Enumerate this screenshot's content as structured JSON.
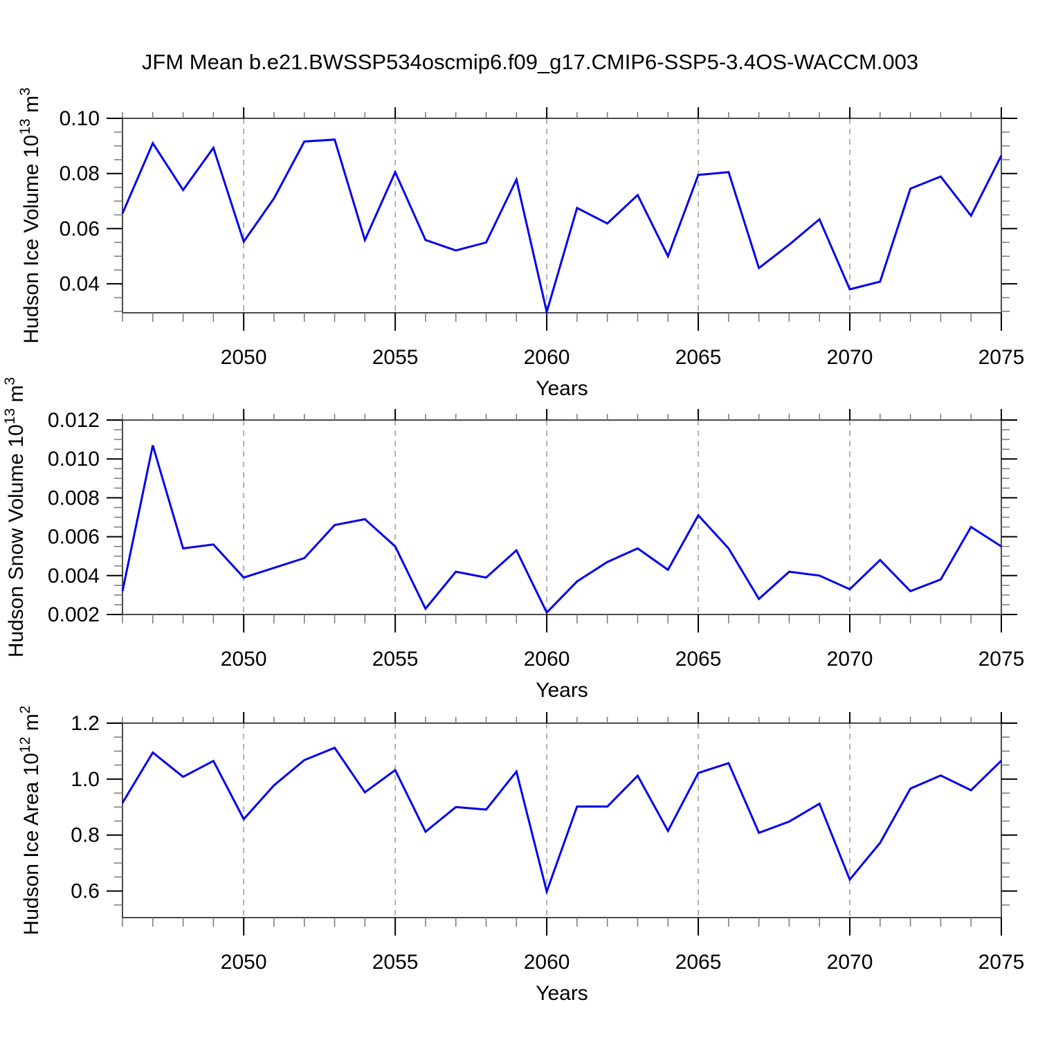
{
  "colors": {
    "line": "#0000ee",
    "frame": "#4a4a4a",
    "major_tick": "#000000",
    "minor_tick": "#777777",
    "grid": "#999999",
    "text": "#000000",
    "background": "#ffffff"
  },
  "chart_data": {
    "type": "line",
    "title": "JFM Mean b.e21.BWSSP534oscmip6.f09_g17.CMIP6-SSP5-3.4OS-WACCM.003",
    "legend": "none",
    "grid": "vertical dashed gridlines at labeled x ticks (2050-2070)",
    "x_axis": {
      "label": "Years",
      "range": [
        2046,
        2075
      ],
      "major_ticks": [
        2050,
        2055,
        2060,
        2065,
        2070,
        2075
      ],
      "minor_tick_step_years": 1,
      "gridlines_at": [
        2050,
        2055,
        2060,
        2065,
        2070
      ],
      "gridline_style": "dashed"
    },
    "x_years": [
      2046,
      2047,
      2048,
      2049,
      2050,
      2051,
      2052,
      2053,
      2054,
      2055,
      2056,
      2057,
      2058,
      2059,
      2060,
      2061,
      2062,
      2063,
      2064,
      2065,
      2066,
      2067,
      2068,
      2069,
      2070,
      2071,
      2072,
      2073,
      2074,
      2075
    ],
    "panels": [
      {
        "id": "hudson-ice-volume",
        "ylabel": "Hudson Ice Volume 10¹³ m³",
        "ylabel_parts": [
          {
            "t": "Hudson Ice Volume 10"
          },
          {
            "t": "13",
            "sup": true
          },
          {
            "t": " m"
          },
          {
            "t": "3",
            "sup": true
          }
        ],
        "ylim": [
          0.0295,
          0.1
        ],
        "y_major_ticks": [
          0.04,
          0.06,
          0.08,
          0.1
        ],
        "y_tick_labels": [
          "0.04",
          "0.06",
          "0.08",
          "0.10"
        ],
        "y_minor_tick_step": 0.005,
        "values": [
          0.0655,
          0.091,
          0.074,
          0.0893,
          0.0553,
          0.071,
          0.0916,
          0.0923,
          0.0559,
          0.0805,
          0.0559,
          0.0521,
          0.055,
          0.0778,
          0.0298,
          0.0675,
          0.0619,
          0.0722,
          0.05,
          0.0795,
          0.0805,
          0.0457,
          0.0542,
          0.0634,
          0.038,
          0.0408,
          0.0745,
          0.0789,
          0.0647,
          0.0865
        ]
      },
      {
        "id": "hudson-snow-volume",
        "ylabel": "Hudson Snow Volume 10¹³ m³",
        "ylabel_parts": [
          {
            "t": "Hudson Snow Volume 10"
          },
          {
            "t": "13",
            "sup": true
          },
          {
            "t": " m"
          },
          {
            "t": "3",
            "sup": true
          }
        ],
        "ylim": [
          0.002,
          0.012
        ],
        "y_major_ticks": [
          0.002,
          0.004,
          0.006,
          0.008,
          0.01,
          0.012
        ],
        "y_tick_labels": [
          "0.002",
          "0.004",
          "0.006",
          "0.008",
          "0.010",
          "0.012"
        ],
        "y_minor_tick_step": 0.0005,
        "values": [
          0.0032,
          0.0107,
          0.0054,
          0.0056,
          0.0039,
          0.0044,
          0.0049,
          0.0066,
          0.0069,
          0.0055,
          0.0023,
          0.0042,
          0.0039,
          0.0053,
          0.0021,
          0.0037,
          0.0047,
          0.0054,
          0.0043,
          0.0071,
          0.0054,
          0.0028,
          0.0042,
          0.004,
          0.0033,
          0.0048,
          0.0032,
          0.0038,
          0.0065,
          0.0055
        ]
      },
      {
        "id": "hudson-ice-area",
        "ylabel": "Hudson Ice Area 10¹² m²",
        "ylabel_parts": [
          {
            "t": "Hudson Ice Area 10"
          },
          {
            "t": "12",
            "sup": true
          },
          {
            "t": " m"
          },
          {
            "t": "2",
            "sup": true
          }
        ],
        "ylim": [
          0.505,
          1.2
        ],
        "y_major_ticks": [
          0.6,
          0.8,
          1.0,
          1.2
        ],
        "y_tick_labels": [
          "0.6",
          "0.8",
          "1.0",
          "1.2"
        ],
        "y_minor_tick_step": 0.05,
        "values": [
          0.915,
          1.095,
          1.008,
          1.065,
          0.857,
          0.978,
          1.068,
          1.112,
          0.953,
          1.032,
          0.812,
          0.9,
          0.891,
          1.027,
          0.598,
          0.902,
          0.902,
          1.012,
          0.815,
          1.022,
          1.057,
          0.808,
          0.848,
          0.912,
          0.641,
          0.772,
          0.966,
          1.013,
          0.96,
          1.066
        ]
      }
    ]
  }
}
